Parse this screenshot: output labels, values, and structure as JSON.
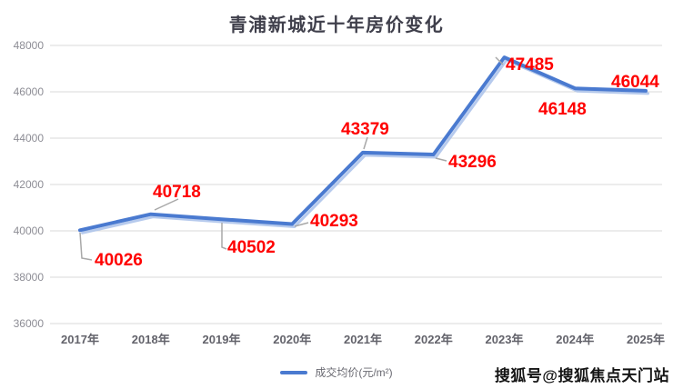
{
  "chart_data": {
    "type": "line",
    "title": "青浦新城近十年房价变化",
    "categories": [
      "2017年",
      "2018年",
      "2019年",
      "2020年",
      "2021年",
      "2022年",
      "2023年",
      "2024年",
      "2025年"
    ],
    "series": [
      {
        "name": "成交均价(元/m²)",
        "values": [
          40026,
          40718,
          40502,
          40293,
          43379,
          43296,
          47485,
          46148,
          46044
        ]
      }
    ],
    "yticks": [
      48000,
      46000,
      44000,
      42000,
      40000,
      38000,
      36000
    ],
    "ylim": [
      36000,
      48000
    ],
    "grid": "horizontal",
    "legend_position": "bottom-center",
    "data_labels": "on",
    "colors": {
      "line": "#4a7ad0",
      "line_shadow": "#a9c1ea",
      "data_label": "#ff0000",
      "grid": "#d9d9d9",
      "y_axis_text": "#8d8d95",
      "x_axis_text": "#63636b",
      "title": "#3f3f4b",
      "leader": "#a8a8a8"
    }
  },
  "legend": {
    "label": "成交均价(元/m²)"
  },
  "watermark": {
    "text": "搜狐号@搜狐焦点天门站"
  }
}
